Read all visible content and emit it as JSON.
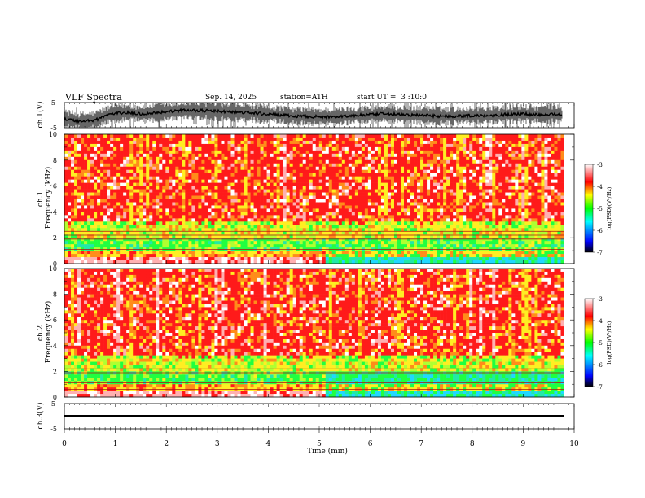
{
  "header": {
    "title": "VLF Spectra",
    "date": "Sep. 14, 2025",
    "station": "station=ATH",
    "start": "start UT =  3 :10:0"
  },
  "colors": {
    "spectrogram_low": "#000000",
    "spectrogram_mid_low": "#0000ff",
    "spectrogram_mid": "#00ff7f",
    "spectrogram_mid_high": "#ffff00",
    "spectrogram_high": "#ff0000",
    "spectrogram_top": "#ffffff",
    "waveform": "#000000"
  },
  "chart_data": [
    {
      "type": "line",
      "id": "ch1-waveform",
      "ylabel": "ch.1(V)",
      "ylim": [
        -5,
        5
      ],
      "y_ticks": [
        "5",
        "-5"
      ],
      "xlim": [
        0,
        10
      ],
      "x": [
        0,
        0.3,
        0.6,
        0.9,
        1.2,
        1.5,
        1.8,
        2.1,
        2.4,
        2.7,
        3.0,
        3.3,
        3.6,
        3.9,
        4.2,
        4.5,
        4.8,
        5.1,
        5.4,
        5.7,
        6.0,
        6.3,
        6.6,
        6.9,
        7.2,
        7.5,
        7.8,
        8.1,
        8.4,
        8.7,
        9.0,
        9.3,
        9.6,
        9.8
      ],
      "y": [
        -1.5,
        -2.5,
        -2.0,
        0.5,
        1.0,
        0.5,
        1.0,
        1.5,
        2.0,
        1.8,
        1.5,
        1.2,
        1.0,
        0.5,
        0.2,
        -0.5,
        -0.5,
        -0.8,
        -0.5,
        -0.2,
        0.2,
        0.5,
        0.2,
        0.0,
        -0.2,
        -0.5,
        -0.3,
        -0.2,
        0.0,
        0.3,
        0.5,
        0.2,
        0.5,
        0.2
      ]
    },
    {
      "type": "heatmap",
      "id": "ch1-spectrogram",
      "ylabel": "ch.1\nFrequency (kHz)",
      "xlim": [
        0,
        9.8
      ],
      "ylim": [
        0,
        10
      ],
      "y_ticks": [
        "0",
        "2",
        "4",
        "6",
        "8",
        "10"
      ],
      "colorbar": {
        "label": "log(PSD)(V²/Hz)",
        "range": [
          -7,
          -3
        ],
        "ticks": [
          "-3",
          "-4",
          "-5",
          "-6",
          "-7"
        ]
      }
    },
    {
      "type": "heatmap",
      "id": "ch2-spectrogram",
      "ylabel": "ch.2\nFrequency (kHz)",
      "xlim": [
        0,
        9.8
      ],
      "ylim": [
        0,
        10
      ],
      "y_ticks": [
        "0",
        "2",
        "4",
        "6",
        "8",
        "10"
      ],
      "colorbar": {
        "label": "log(PSD)(V²/Hz)",
        "range": [
          -7,
          -3
        ],
        "ticks": [
          "-3",
          "-4",
          "-5",
          "-6",
          "-7"
        ]
      }
    },
    {
      "type": "line",
      "id": "ch3-waveform",
      "ylabel": "ch.3(V)",
      "ylim": [
        -5,
        5
      ],
      "y_ticks": [
        "5",
        "-5"
      ],
      "xlim": [
        0,
        10
      ],
      "x": [
        0,
        9.8
      ],
      "y": [
        0,
        0
      ]
    }
  ],
  "x_axis": {
    "label": "Time (min)",
    "ticks": [
      "0",
      "1",
      "2",
      "3",
      "4",
      "5",
      "6",
      "7",
      "8",
      "9",
      "10"
    ]
  }
}
